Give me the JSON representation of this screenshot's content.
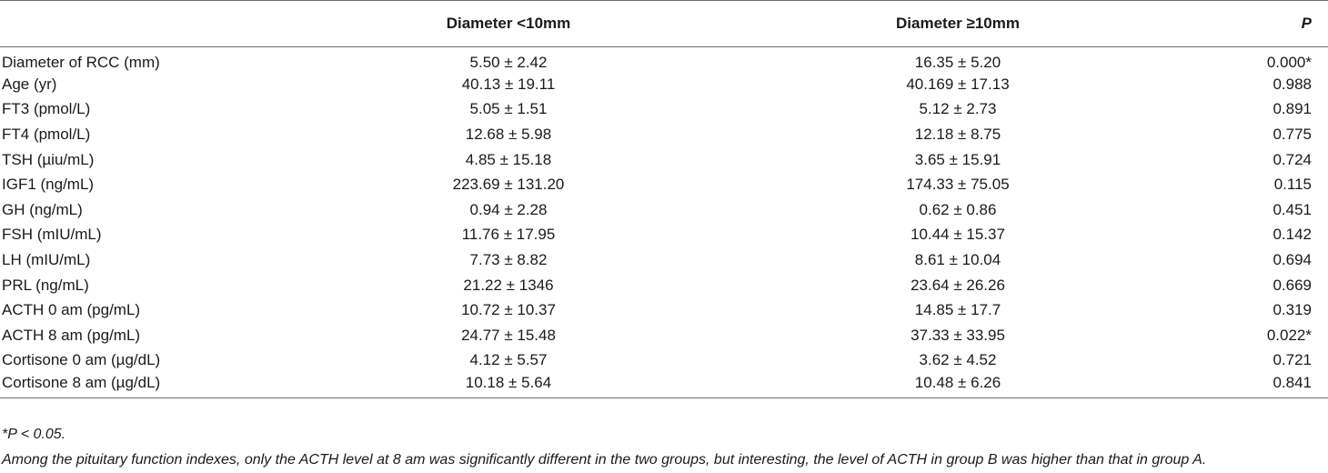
{
  "table": {
    "headers": [
      "",
      "Diameter <10mm",
      "Diameter ≥10mm",
      "P"
    ],
    "rows": [
      [
        "Diameter of RCC (mm)",
        "5.50 ± 2.42",
        "16.35 ± 5.20",
        "0.000*"
      ],
      [
        "Age (yr)",
        "40.13 ± 19.11",
        "40.169 ± 17.13",
        "0.988"
      ],
      [
        "FT3 (pmol/L)",
        "5.05 ± 1.51",
        "5.12 ± 2.73",
        "0.891"
      ],
      [
        "FT4 (pmol/L)",
        "12.68 ± 5.98",
        "12.18 ± 8.75",
        "0.775"
      ],
      [
        "TSH (µiu/mL)",
        "4.85 ± 15.18",
        "3.65 ± 15.91",
        "0.724"
      ],
      [
        "IGF1 (ng/mL)",
        "223.69 ± 131.20",
        "174.33 ± 75.05",
        "0.115"
      ],
      [
        "GH (ng/mL)",
        "0.94 ± 2.28",
        "0.62 ± 0.86",
        "0.451"
      ],
      [
        "FSH (mIU/mL)",
        "11.76 ± 17.95",
        "10.44 ± 15.37",
        "0.142"
      ],
      [
        "LH (mIU/mL)",
        "7.73 ± 8.82",
        "8.61 ± 10.04",
        "0.694"
      ],
      [
        "PRL (ng/mL)",
        "21.22 ± 1346",
        "23.64 ± 26.26",
        "0.669"
      ],
      [
        "ACTH 0 am (pg/mL)",
        "10.72 ± 10.37",
        "14.85 ± 17.7",
        "0.319"
      ],
      [
        "ACTH 8 am (pg/mL)",
        "24.77 ± 15.48",
        "37.33 ± 33.95",
        "0.022*"
      ],
      [
        "Cortisone 0 am (µg/dL)",
        "4.12 ± 5.57",
        "3.62 ± 4.52",
        "0.721"
      ],
      [
        "Cortisone 8 am (µg/dL)",
        "10.18 ± 5.64",
        "10.48 ± 6.26",
        "0.841"
      ]
    ]
  },
  "footnotes": {
    "significance": "*P < 0.05.",
    "note": "Among the pituitary function indexes, only the ACTH level at 8 am was significantly different in the two groups, but interesting, the level of ACTH in group B was higher than that in group A."
  }
}
